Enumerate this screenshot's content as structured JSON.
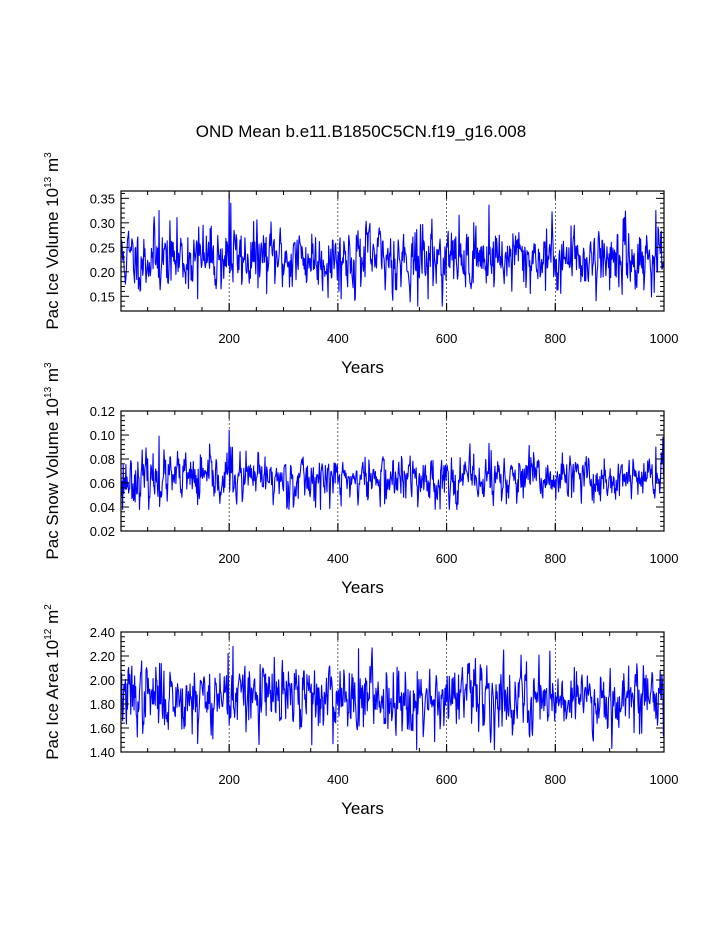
{
  "figure": {
    "title": "OND Mean b.e11.B1850C5CN.f19_g16.008"
  },
  "colors": {
    "line": "#0000ff",
    "axis": "#000000",
    "grid": "#000000"
  },
  "chart_data": [
    {
      "type": "line",
      "name": "ice-volume",
      "xlabel": "Years",
      "ylabel": {
        "prefix": "Pac Ice Volume 10",
        "exponent": "13",
        "unit": " m",
        "unit_exponent": "3"
      },
      "xlim": [
        1,
        1000
      ],
      "ylim": [
        0.12,
        0.365
      ],
      "xticks": [
        "200",
        "400",
        "600",
        "800",
        "1000"
      ],
      "xtick_values": [
        200,
        400,
        600,
        800,
        1000
      ],
      "yticks": [
        "0.15",
        "0.20",
        "0.25",
        "0.30",
        "0.35"
      ],
      "ytick_values": [
        0.15,
        0.2,
        0.25,
        0.3,
        0.35
      ],
      "grid_x": [
        200,
        400,
        600,
        800
      ],
      "series": {
        "name": "Pac Ice Volume",
        "mean": 0.228,
        "sd": 0.031,
        "seed": 11,
        "min": 0.13,
        "max": 0.36,
        "peaks": [
          [
            71,
            0.325
          ],
          [
            200,
            0.36
          ],
          [
            203,
            0.34
          ],
          [
            547,
            0.13
          ],
          [
            142,
            0.145
          ],
          [
            678,
            0.336
          ],
          [
            985,
            0.325
          ]
        ]
      }
    },
    {
      "type": "line",
      "name": "snow-volume",
      "xlabel": "Years",
      "ylabel": {
        "prefix": "Pac Snow Volume 10",
        "exponent": "13",
        "unit": " m",
        "unit_exponent": "3"
      },
      "xlim": [
        1,
        1000
      ],
      "ylim": [
        0.02,
        0.12
      ],
      "xticks": [
        "200",
        "400",
        "600",
        "800",
        "1000"
      ],
      "xtick_values": [
        200,
        400,
        600,
        800,
        1000
      ],
      "yticks": [
        "0.02",
        "0.04",
        "0.06",
        "0.08",
        "0.10",
        "0.12"
      ],
      "ytick_values": [
        0.02,
        0.04,
        0.06,
        0.08,
        0.1,
        0.12
      ],
      "grid_x": [
        200,
        400,
        600,
        800
      ],
      "series": {
        "name": "Pac Snow Volume",
        "mean": 0.063,
        "sd": 0.0095,
        "seed": 23,
        "min": 0.038,
        "max": 0.104,
        "peaks": [
          [
            71,
            0.099
          ],
          [
            200,
            0.104
          ],
          [
            203,
            0.09
          ],
          [
            547,
            0.04
          ],
          [
            142,
            0.042
          ],
          [
            678,
            0.093
          ],
          [
            985,
            0.09
          ],
          [
            4,
            0.038
          ]
        ]
      }
    },
    {
      "type": "line",
      "name": "ice-area",
      "xlabel": "Years",
      "ylabel": {
        "prefix": "Pac Ice Area 10",
        "exponent": "12",
        "unit": " m",
        "unit_exponent": "2"
      },
      "xlim": [
        1,
        1000
      ],
      "ylim": [
        1.4,
        2.4
      ],
      "xticks": [
        "200",
        "400",
        "600",
        "800",
        "1000"
      ],
      "xtick_values": [
        200,
        400,
        600,
        800,
        1000
      ],
      "yticks": [
        "1.40",
        "1.60",
        "1.80",
        "2.00",
        "2.20",
        "2.40"
      ],
      "ytick_values": [
        1.4,
        1.6,
        1.8,
        2.0,
        2.2,
        2.4
      ],
      "grid_x": [
        200,
        400,
        600,
        800
      ],
      "series": {
        "name": "Pac Ice Area",
        "mean": 1.86,
        "sd": 0.13,
        "seed": 37,
        "min": 1.42,
        "max": 2.28,
        "peaks": [
          [
            207,
            2.28
          ],
          [
            198,
            2.22
          ],
          [
            438,
            2.26
          ],
          [
            545,
            1.42
          ],
          [
            142,
            1.47
          ],
          [
            352,
            1.46
          ],
          [
            790,
            2.24
          ],
          [
            955,
            1.55
          ]
        ]
      }
    }
  ]
}
